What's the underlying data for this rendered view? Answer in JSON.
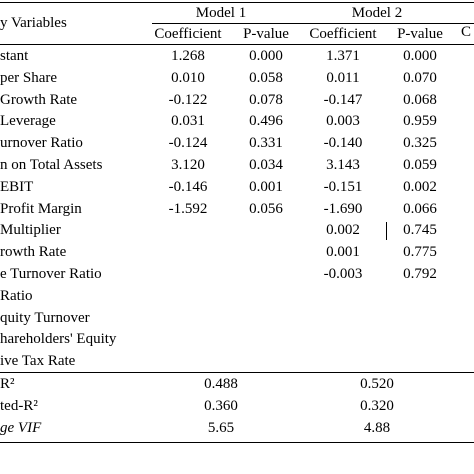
{
  "table": {
    "header_var": "y Variables",
    "models": [
      "Model 1",
      "Model 2",
      "C"
    ],
    "subheaders": [
      "Coefficient",
      "P-value",
      "Coefficient",
      "P-value"
    ],
    "rows": [
      {
        "label": "stant",
        "m1c": "1.268",
        "m1p": "0.000",
        "m2c": "1.371",
        "m2p": "0.000"
      },
      {
        "label": " per Share",
        "m1c": "0.010",
        "m1p": "0.058",
        "m2c": "0.011",
        "m2p": "0.070"
      },
      {
        "label": "Growth Rate",
        "m1c": "-0.122",
        "m1p": "0.078",
        "m2c": "-0.147",
        "m2p": "0.068"
      },
      {
        "label": "Leverage",
        "m1c": "0.031",
        "m1p": "0.496",
        "m2c": "0.003",
        "m2p": "0.959"
      },
      {
        "label": "urnover Ratio",
        "m1c": "-0.124",
        "m1p": "0.331",
        "m2c": "-0.140",
        "m2p": "0.325"
      },
      {
        "label": "n on Total Assets",
        "m1c": "3.120",
        "m1p": "0.034",
        "m2c": "3.143",
        "m2p": "0.059"
      },
      {
        "label": " EBIT",
        "m1c": "-0.146",
        "m1p": "0.001",
        "m2c": "-0.151",
        "m2p": "0.002"
      },
      {
        "label": " Profit Margin",
        "m1c": "-1.592",
        "m1p": "0.056",
        "m2c": "-1.690",
        "m2p": "0.066"
      },
      {
        "label": "Multiplier",
        "m1c": "",
        "m1p": "",
        "m2c": "0.002",
        "m2p": "0.745"
      },
      {
        "label": "rowth Rate",
        "m1c": "",
        "m1p": "",
        "m2c": "0.001",
        "m2p": "0.775"
      },
      {
        "label": "e Turnover Ratio",
        "m1c": "",
        "m1p": "",
        "m2c": "-0.003",
        "m2p": "0.792"
      },
      {
        "label": "Ratio",
        "m1c": "",
        "m1p": "",
        "m2c": "",
        "m2p": ""
      },
      {
        "label": "quity Turnover",
        "m1c": "",
        "m1p": "",
        "m2c": "",
        "m2p": ""
      },
      {
        "label": "hareholders' Equity",
        "m1c": "",
        "m1p": "",
        "m2c": "",
        "m2p": ""
      },
      {
        "label": "ive Tax Rate",
        "m1c": "",
        "m1p": "",
        "m2c": "",
        "m2p": ""
      }
    ],
    "stats": [
      {
        "label": "R²",
        "m1": "0.488",
        "m2": "0.520"
      },
      {
        "label": "ted-R²",
        "m1": "0.360",
        "m2": "0.320"
      },
      {
        "label": "ge VIF",
        "m1": "5.65",
        "m2": "4.88"
      }
    ]
  }
}
